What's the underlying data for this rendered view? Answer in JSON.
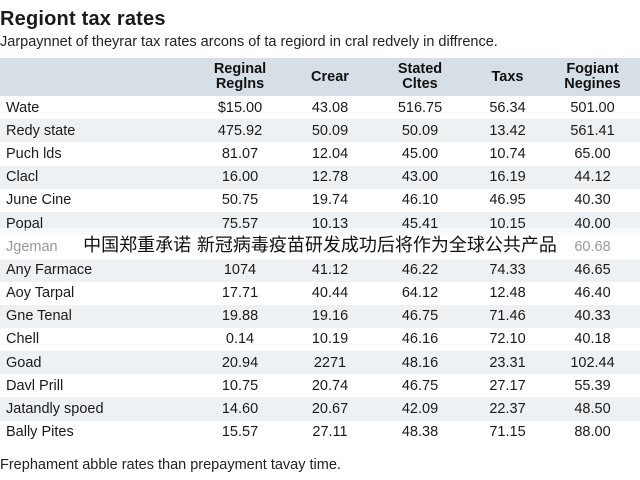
{
  "title": "Regiont tax rates",
  "subtitle": "Jarpaynnet of theyrar tax rates arcons of ta regiord in cral redvely in diffrence.",
  "table": {
    "headers": [
      "",
      "Reginal\nReglns",
      "Crear",
      "Stated\nCltes",
      "Taxs",
      "Fogiant\nNegines"
    ],
    "rows": [
      [
        "Wate",
        "$15.00",
        "43.08",
        "516.75",
        "56.34",
        "501.00"
      ],
      [
        "Redy state",
        "475.92",
        "50.09",
        "50.09",
        "13.42",
        "561.41"
      ],
      [
        "Puch lds",
        "81.07",
        "12.04",
        "45.00",
        "10.74",
        "65.00"
      ],
      [
        "Clacl",
        "16.00",
        "12.78",
        "43.00",
        "16.19",
        "44.12"
      ],
      [
        "June Cine",
        "50.75",
        "19.74",
        "46.10",
        "46.95",
        "40.30"
      ],
      [
        "Popal",
        "75.57",
        "10.13",
        "45.41",
        "10.15",
        "40.00"
      ],
      [
        "Jgeman",
        "",
        "",
        "",
        "",
        "60.68"
      ],
      [
        "Any Farmace",
        "1074",
        "41.12",
        "46.22",
        "74.33",
        "46.65"
      ],
      [
        "Aoy Tarpal",
        "17.71",
        "40.44",
        "64.12",
        "12.48",
        "46.40"
      ],
      [
        "Gne Tenal",
        "19.88",
        "19.16",
        "46.75",
        "71.46",
        "40.33"
      ],
      [
        "Chell",
        "0.14",
        "10.19",
        "46.16",
        "72.10",
        "40.18"
      ],
      [
        "Goad",
        "20.94",
        "2271",
        "48.16",
        "23.31",
        "102.44"
      ],
      [
        "Davl Prill",
        "10.75",
        "20.74",
        "46.75",
        "27.17",
        "55.39"
      ],
      [
        "Jatandly spoed",
        "14.60",
        "20.67",
        "42.09",
        "22.37",
        "48.50"
      ],
      [
        "Bally Pites",
        "15.57",
        "27.11",
        "48.38",
        "71.15",
        "88.00"
      ]
    ]
  },
  "note": "Frephament abble rates than prepayment tavay time.",
  "overlay_caption": "中国郑重承诺 新冠病毒疫苗研发成功后将作为全球公共产品",
  "colors": {
    "header_bg": "#d6dee6",
    "stripe_bg": "#eef1f4"
  }
}
